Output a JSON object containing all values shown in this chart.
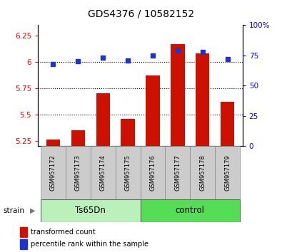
{
  "title": "GDS4376 / 10582152",
  "samples": [
    "GSM957172",
    "GSM957173",
    "GSM957174",
    "GSM957175",
    "GSM957176",
    "GSM957177",
    "GSM957178",
    "GSM957179"
  ],
  "bar_values": [
    5.26,
    5.35,
    5.7,
    5.46,
    5.87,
    6.17,
    6.08,
    5.62
  ],
  "dot_values": [
    68,
    70,
    73,
    71,
    75,
    79,
    78,
    72
  ],
  "groups": [
    {
      "label": "Ts65Dn",
      "start": 0,
      "end": 4,
      "color": "#bbf0bb"
    },
    {
      "label": "control",
      "start": 4,
      "end": 8,
      "color": "#55dd55"
    }
  ],
  "ylim_left": [
    5.2,
    6.35
  ],
  "ylim_right": [
    0,
    100
  ],
  "yticks_left": [
    5.25,
    5.5,
    5.75,
    6.0,
    6.25
  ],
  "ytick_labels_left": [
    "5.25",
    "5.5",
    "5.75",
    "6",
    "6.25"
  ],
  "yticks_right": [
    0,
    25,
    50,
    75,
    100
  ],
  "ytick_labels_right": [
    "0",
    "25",
    "50",
    "75",
    "100%"
  ],
  "gridlines": [
    5.5,
    5.75,
    6.0
  ],
  "bar_color": "#cc1100",
  "dot_color": "#2233cc",
  "bar_bottom": 5.2,
  "legend_items": [
    {
      "color": "#cc1100",
      "label": "transformed count"
    },
    {
      "color": "#2233cc",
      "label": "percentile rank within the sample"
    }
  ],
  "strain_label": "strain"
}
